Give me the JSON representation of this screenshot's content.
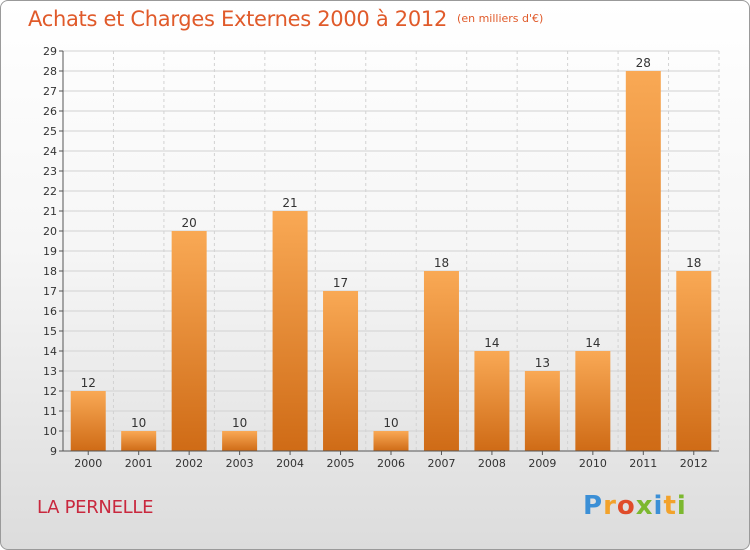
{
  "title": "Achats et Charges Externes 2000 à 2012",
  "subtitle": "(en milliers d'€)",
  "place": "LA PERNELLE",
  "logo": {
    "letters": [
      "P",
      "r",
      "o",
      "x",
      "i",
      "t",
      "i"
    ],
    "colors": [
      "#3b8fd6",
      "#f2a22b",
      "#e04c2a",
      "#7cb82f",
      "#3b8fd6",
      "#f2a22b",
      "#7cb82f"
    ]
  },
  "colors": {
    "bar_light": "#f9a955",
    "bar_dark": "#cf6b16",
    "title": "#e05a2a",
    "place": "#c9283e"
  },
  "chart_data": {
    "type": "bar",
    "title": "Achats et Charges Externes 2000 à 2012",
    "subtitle": "(en milliers d'€)",
    "categories": [
      "2000",
      "2001",
      "2002",
      "2003",
      "2004",
      "2005",
      "2006",
      "2007",
      "2008",
      "2009",
      "2010",
      "2011",
      "2012"
    ],
    "values": [
      12,
      10,
      20,
      10,
      21,
      17,
      10,
      18,
      14,
      13,
      14,
      28,
      18
    ],
    "ylim": [
      9,
      29
    ],
    "yticks": [
      9,
      10,
      11,
      12,
      13,
      14,
      15,
      16,
      17,
      18,
      19,
      20,
      21,
      22,
      23,
      24,
      25,
      26,
      27,
      28,
      29
    ],
    "grid": true,
    "data_labels": true
  }
}
